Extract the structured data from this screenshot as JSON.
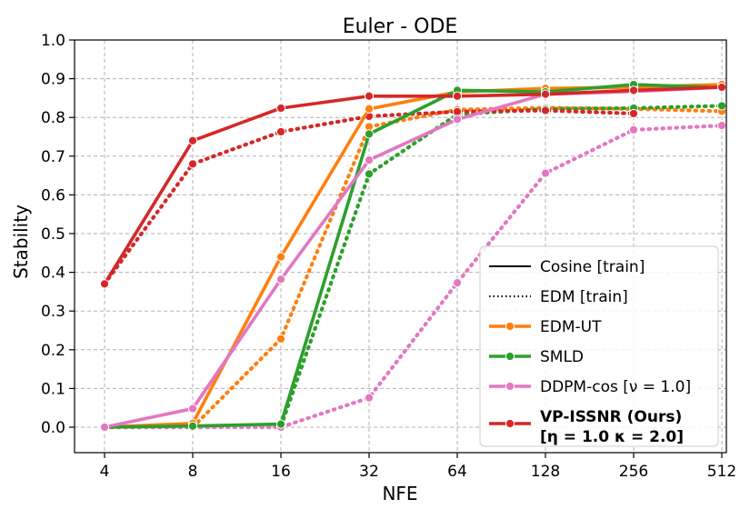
{
  "chart_data": {
    "type": "line",
    "title": "Euler - ODE",
    "xlabel": "NFE",
    "ylabel": "Stability",
    "x": [
      "4",
      "8",
      "16",
      "32",
      "64",
      "128",
      "256",
      "512"
    ],
    "ylim": [
      0.0,
      1.0
    ],
    "yticks": [
      "0.0",
      "0.1",
      "0.2",
      "0.3",
      "0.4",
      "0.5",
      "0.6",
      "0.7",
      "0.8",
      "0.9",
      "1.0"
    ],
    "grid": true,
    "legend_position": "lower-right",
    "style_legend": [
      {
        "key": "cosine",
        "label": "Cosine [train]",
        "dash": "solid"
      },
      {
        "key": "edm",
        "label": "EDM [train]",
        "dash": "dotted"
      }
    ],
    "series": [
      {
        "key": "edmut",
        "name": "EDM-UT",
        "color": "#ff7f0e",
        "cosine": [
          0.0,
          0.01,
          0.44,
          0.822,
          0.866,
          0.875,
          0.878,
          0.885
        ],
        "edm": [
          0.0,
          0.0,
          0.228,
          0.776,
          0.82,
          0.825,
          0.822,
          0.816
        ]
      },
      {
        "key": "smld",
        "name": "SMLD",
        "color": "#2ca02c",
        "cosine": [
          0.0,
          0.003,
          0.008,
          0.757,
          0.87,
          0.866,
          0.885,
          0.877
        ],
        "edm": [
          0.0,
          0.0,
          0.002,
          0.654,
          0.808,
          0.822,
          0.824,
          0.83
        ]
      },
      {
        "key": "ddpm",
        "name": "DDPM-cos [ν = 1.0]",
        "color": "#e377c2",
        "cosine": [
          0.0,
          0.048,
          0.382,
          0.69,
          0.795,
          0.86,
          0.867,
          0.878
        ],
        "edm": [
          0.0,
          0.0,
          0.0,
          0.076,
          0.373,
          0.656,
          0.768,
          0.779
        ]
      },
      {
        "key": "vpissnr",
        "name": "VP-ISSNR (Ours)",
        "name_line2": "[η = 1.0 κ = 2.0]",
        "color": "#d62728",
        "bold": true,
        "cosine": [
          0.37,
          0.74,
          0.824,
          0.855,
          0.855,
          0.86,
          0.87,
          0.878
        ],
        "edm": [
          0.37,
          0.68,
          0.763,
          0.803,
          0.815,
          0.818,
          0.81,
          null
        ]
      }
    ]
  }
}
